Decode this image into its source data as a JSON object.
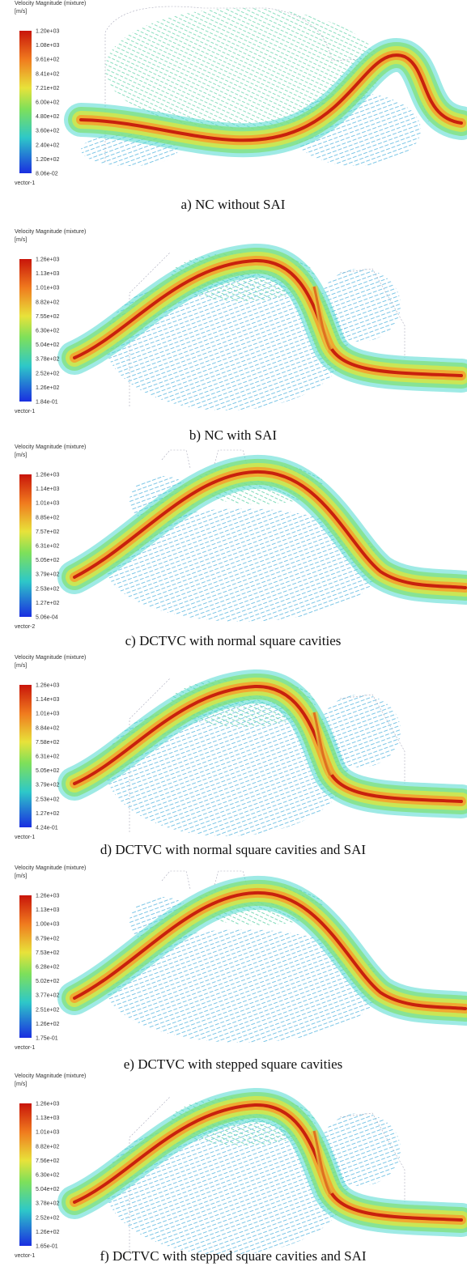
{
  "panels": [
    {
      "legend": {
        "title": "Velocity Magnitude (mixture)",
        "unit": "[m/s]",
        "ticks": [
          "1.20e+03",
          "1.08e+03",
          "9.61e+02",
          "8.41e+02",
          "7.21e+02",
          "6.00e+02",
          "4.80e+02",
          "3.60e+02",
          "2.40e+02",
          "1.20e+02",
          "8.06e-02"
        ],
        "vector": "vector-1"
      },
      "caption": "a) NC without SAI"
    },
    {
      "legend": {
        "title": "Velocity Magnitude (mixture)",
        "unit": "[m/s]",
        "ticks": [
          "1.26e+03",
          "1.13e+03",
          "1.01e+03",
          "8.82e+02",
          "7.55e+02",
          "6.30e+02",
          "5.04e+02",
          "3.78e+02",
          "2.52e+02",
          "1.26e+02",
          "1.84e-01"
        ],
        "vector": "vector-1"
      },
      "caption": "b) NC with SAI"
    },
    {
      "legend": {
        "title": "Velocity Magnitude (mixture)",
        "unit": "[m/s]",
        "ticks": [
          "1.26e+03",
          "1.14e+03",
          "1.01e+03",
          "8.85e+02",
          "7.57e+02",
          "6.31e+02",
          "5.05e+02",
          "3.79e+02",
          "2.53e+02",
          "1.27e+02",
          "5.06e-04"
        ],
        "vector": "vector-2"
      },
      "caption": "c) DCTVC with normal square cavities"
    },
    {
      "legend": {
        "title": "Velocity Magnitude (mixture)",
        "unit": "[m/s]",
        "ticks": [
          "1.26e+03",
          "1.14e+03",
          "1.01e+03",
          "8.84e+02",
          "7.58e+02",
          "6.31e+02",
          "5.05e+02",
          "3.79e+02",
          "2.53e+02",
          "1.27e+02",
          "4.24e-01"
        ],
        "vector": "vector-1"
      },
      "caption": "d) DCTVC with normal square cavities and SAI"
    },
    {
      "legend": {
        "title": "Velocity Magnitude (mixture)",
        "unit": "[m/s]",
        "ticks": [
          "1.26e+03",
          "1.13e+03",
          "1.00e+03",
          "8.79e+02",
          "7.53e+02",
          "6.28e+02",
          "5.02e+02",
          "3.77e+02",
          "2.51e+02",
          "1.26e+02",
          "1.75e-01"
        ],
        "vector": "vector-1"
      },
      "caption": "e) DCTVC with stepped square cavities"
    },
    {
      "legend": {
        "title": "Velocity Magnitude (mixture)",
        "unit": "[m/s]",
        "ticks": [
          "1.26e+03",
          "1.13e+03",
          "1.01e+03",
          "8.82e+02",
          "7.56e+02",
          "6.30e+02",
          "5.04e+02",
          "3.78e+02",
          "2.52e+02",
          "1.26e+02",
          "1.65e-01"
        ],
        "vector": "vector-1"
      },
      "caption": "f) DCTVC with stepped square cavities and SAI"
    }
  ]
}
